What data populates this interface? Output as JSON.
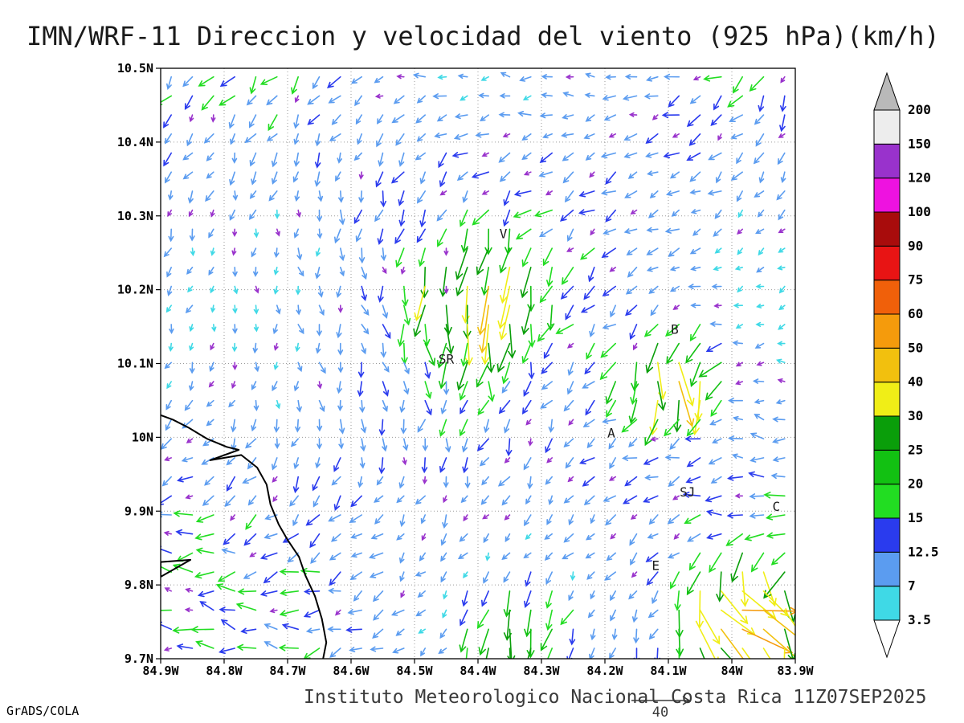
{
  "title": "IMN/WRF-11 Direccion y velocidad del viento (925 hPa)(km/h)",
  "footer": {
    "institution": "Instituto Meteorologico Nacional Costa Rica 11Z07SEP2025",
    "credit": "GrADS/COLA"
  },
  "chart_data": {
    "type": "vector_field",
    "title": "IMN/WRF-11 Direccion y velocidad del viento (925 hPa)(km/h)",
    "model": "IMN/WRF-11",
    "variable": "Direccion y velocidad del viento",
    "level": "925 hPa",
    "units": "km/h",
    "valid_time": "11Z07SEP2025",
    "x_ticks": [
      "84.9W",
      "84.8W",
      "84.7W",
      "84.6W",
      "84.5W",
      "84.4W",
      "84.3W",
      "84.2W",
      "84.1W",
      "84W",
      "83.9W"
    ],
    "y_ticks": [
      "10.5N",
      "10.4N",
      "10.3N",
      "10.2N",
      "10.1N",
      "10N",
      "9.9N",
      "9.8N",
      "9.7N"
    ],
    "lon_range_deg_w": [
      84.9,
      83.9
    ],
    "lat_range_deg_n": [
      9.7,
      10.5
    ],
    "grid": {
      "nx": 30,
      "ny": 31
    },
    "reference_vector": {
      "value": 40
    },
    "colorbar": {
      "levels": [
        3.5,
        7,
        12.5,
        15,
        20,
        25,
        30,
        40,
        50,
        60,
        75,
        90,
        100,
        120,
        150,
        200
      ],
      "colors": [
        "#ffffff",
        "#3fd9e6",
        "#5b9cf0",
        "#2a3bee",
        "#22dd22",
        "#12c112",
        "#0a9e0a",
        "#f0ee17",
        "#f2c00e",
        "#f59b0c",
        "#f0600a",
        "#e81414",
        "#a80c0c",
        "#ee12e0",
        "#9932cc",
        "#ededed",
        "#b9b9b9"
      ],
      "calm_color": "#9932cc"
    },
    "flow": {
      "base_dir_to_deg": 225,
      "base_speed_kmh": [
        6,
        15
      ],
      "calm_fraction": 0.1,
      "patches": [
        {
          "cx": 0.5,
          "cy": 0.62,
          "r": 0.16,
          "dir_to_deg": 185,
          "speed_kmh": 36,
          "note": "southerly surge north of SR"
        },
        {
          "cx": 0.81,
          "cy": 0.48,
          "r": 0.12,
          "dir_to_deg": 150,
          "speed_kmh": 38,
          "note": "south-southeast jet near B"
        },
        {
          "cx": 0.92,
          "cy": 0.08,
          "r": 0.13,
          "dir_to_deg": 85,
          "speed_kmh": 48,
          "note": "strong westerly jet bottom-right"
        },
        {
          "cx": 0.56,
          "cy": 0.05,
          "r": 0.12,
          "dir_to_deg": 180,
          "speed_kmh": 34,
          "note": "southward flow bottom-centre"
        },
        {
          "cx": 0.98,
          "cy": 0.28,
          "r": 0.1,
          "dir_to_deg": 265,
          "speed_kmh": 14,
          "note": "weak flow toward west near C"
        }
      ]
    },
    "stations": [
      {
        "label": "V",
        "lon_w": 84.36,
        "lat_n": 10.27
      },
      {
        "label": "B",
        "lon_w": 84.09,
        "lat_n": 10.14
      },
      {
        "label": "SR",
        "lon_w": 84.45,
        "lat_n": 10.1
      },
      {
        "label": "A",
        "lon_w": 84.19,
        "lat_n": 10.0
      },
      {
        "label": "SJ",
        "lon_w": 84.07,
        "lat_n": 9.92
      },
      {
        "label": "C",
        "lon_w": 83.93,
        "lat_n": 9.9
      },
      {
        "label": "E",
        "lon_w": 84.12,
        "lat_n": 9.82
      }
    ],
    "coastline_lonw_lat": [
      [
        84.9,
        10.03
      ],
      [
        84.881,
        10.024
      ],
      [
        84.856,
        10.013
      ],
      [
        84.827,
        9.998
      ],
      [
        84.796,
        9.987
      ],
      [
        84.777,
        9.983
      ],
      [
        84.822,
        9.969
      ],
      [
        84.773,
        9.976
      ],
      [
        84.748,
        9.959
      ],
      [
        84.733,
        9.936
      ],
      [
        84.727,
        9.909
      ],
      [
        84.714,
        9.882
      ],
      [
        84.7,
        9.861
      ],
      [
        84.682,
        9.838
      ],
      [
        84.672,
        9.813
      ],
      [
        84.657,
        9.785
      ],
      [
        84.646,
        9.754
      ],
      [
        84.639,
        9.722
      ],
      [
        84.644,
        9.7
      ]
    ],
    "island_lonw_lat": [
      [
        84.9,
        9.831
      ],
      [
        84.853,
        9.834
      ],
      [
        84.9,
        9.811
      ]
    ]
  }
}
